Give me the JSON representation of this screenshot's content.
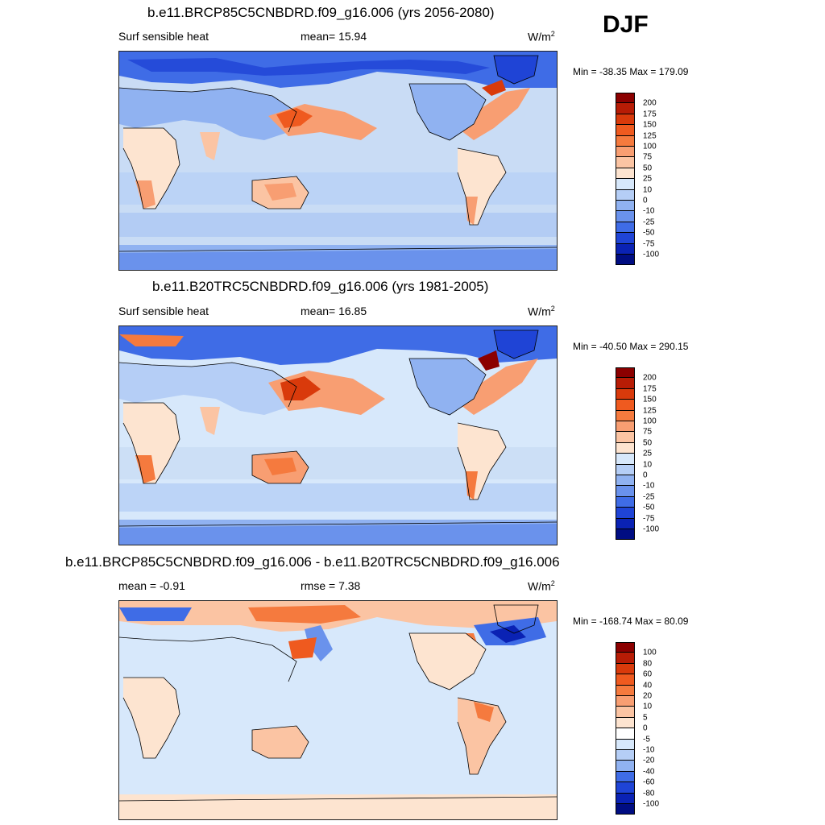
{
  "season": "DJF",
  "panels": [
    {
      "title": "b.e11.BRCP85C5CNBDRD.f09_g16.006 (yrs 2056-2080)",
      "left_label": "Surf sensible heat",
      "center_label": "mean=  15.94",
      "units": "W/m",
      "units_sup": "2",
      "minmax": "Min = -38.35 Max = 179.09",
      "colorbar_labels": [
        "200",
        "175",
        "150",
        "125",
        "100",
        "75",
        "50",
        "25",
        "10",
        "0",
        "-10",
        "-25",
        "-50",
        "-75",
        "-100"
      ],
      "colorbar_colors": [
        "#8b0000",
        "#b71c05",
        "#d93a0b",
        "#ef5a1f",
        "#f57a3e",
        "#f89e72",
        "#fbc4a3",
        "#fde4d0",
        "#d7e8fb",
        "#b5cef6",
        "#90b2f1",
        "#6a92ec",
        "#3f6ce6",
        "#1f44d6",
        "#0a22b4",
        "#000d82"
      ]
    },
    {
      "title": "b.e11.B20TRC5CNBDRD.f09_g16.006 (yrs 1981-2005)",
      "left_label": "Surf sensible heat",
      "center_label": "mean=  16.85",
      "units": "W/m",
      "units_sup": "2",
      "minmax": "Min = -40.50 Max = 290.15",
      "colorbar_labels": [
        "200",
        "175",
        "150",
        "125",
        "100",
        "75",
        "50",
        "25",
        "10",
        "0",
        "-10",
        "-25",
        "-50",
        "-75",
        "-100"
      ],
      "colorbar_colors": [
        "#8b0000",
        "#b71c05",
        "#d93a0b",
        "#ef5a1f",
        "#f57a3e",
        "#f89e72",
        "#fbc4a3",
        "#fde4d0",
        "#d7e8fb",
        "#b5cef6",
        "#90b2f1",
        "#6a92ec",
        "#3f6ce6",
        "#1f44d6",
        "#0a22b4",
        "#000d82"
      ]
    },
    {
      "title": "b.e11.BRCP85C5CNBDRD.f09_g16.006 - b.e11.B20TRC5CNBDRD.f09_g16.006",
      "left_label": "mean =  -0.91",
      "center_label": "rmse =   7.38",
      "units": "W/m",
      "units_sup": "2",
      "minmax": "Min = -168.74 Max =  80.09",
      "colorbar_labels": [
        "100",
        "80",
        "60",
        "40",
        "20",
        "10",
        "5",
        "0",
        "-5",
        "-10",
        "-20",
        "-40",
        "-60",
        "-80",
        "-100"
      ],
      "colorbar_colors": [
        "#8b0000",
        "#b71c05",
        "#d93a0b",
        "#ef5a1f",
        "#f57a3e",
        "#f89e72",
        "#fbc4a3",
        "#fde4d0",
        "#ffffff",
        "#d7e8fb",
        "#b5cef6",
        "#90b2f1",
        "#3f6ce6",
        "#1f44d6",
        "#0a22b4",
        "#000d82"
      ]
    }
  ],
  "chart_data": [
    {
      "type": "heatmap",
      "title": "b.e11.BRCP85C5CNBDRD.f09_g16.006 (yrs 2056-2080)",
      "variable": "Surf sensible heat",
      "season": "DJF",
      "units": "W/m2",
      "mean": 15.94,
      "min": -38.35,
      "max": 179.09,
      "colorbar_levels": [
        -100,
        -75,
        -50,
        -25,
        -10,
        0,
        10,
        25,
        50,
        75,
        100,
        125,
        150,
        175,
        200
      ]
    },
    {
      "type": "heatmap",
      "title": "b.e11.B20TRC5CNBDRD.f09_g16.006 (yrs 1981-2005)",
      "variable": "Surf sensible heat",
      "season": "DJF",
      "units": "W/m2",
      "mean": 16.85,
      "min": -40.5,
      "max": 290.15,
      "colorbar_levels": [
        -100,
        -75,
        -50,
        -25,
        -10,
        0,
        10,
        25,
        50,
        75,
        100,
        125,
        150,
        175,
        200
      ]
    },
    {
      "type": "heatmap",
      "title": "b.e11.BRCP85C5CNBDRD.f09_g16.006 - b.e11.B20TRC5CNBDRD.f09_g16.006",
      "season": "DJF",
      "units": "W/m2",
      "mean": -0.91,
      "rmse": 7.38,
      "min": -168.74,
      "max": 80.09,
      "colorbar_levels": [
        -100,
        -80,
        -60,
        -40,
        -20,
        -10,
        -5,
        0,
        5,
        10,
        20,
        40,
        60,
        80,
        100
      ]
    }
  ]
}
